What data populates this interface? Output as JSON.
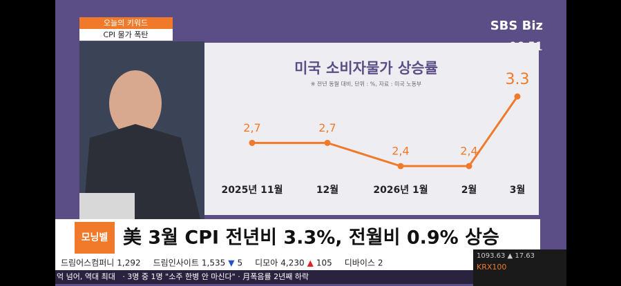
{
  "keyword": {
    "label": "오늘의 키워드",
    "topic": "CPI 물가 폭탄"
  },
  "logo": "SBS Biz",
  "clock": "06:51",
  "chart_data": {
    "type": "line",
    "title": "미국 소비자물가 상승률",
    "subtitle": "※ 전년 동월 대비, 단위 : %, 자료 : 미국 노동부",
    "categories": [
      "2025년 11월",
      "12월",
      "2026년 1월",
      "2월",
      "3월"
    ],
    "values": [
      2.7,
      2.7,
      2.4,
      2.4,
      3.3
    ],
    "value_labels": [
      "2,7",
      "2,7",
      "2,4",
      "2,4",
      "3.3"
    ],
    "color": "#f07a2a"
  },
  "headline": {
    "badge": "모닝벨",
    "text": "美 3월 CPI 전년비 3.3%, 전월비 0.9% 상승"
  },
  "ticker": [
    {
      "name": "드림어스컴퍼니",
      "price": "1,292"
    },
    {
      "name": "드림인사이트",
      "price": "1,535",
      "arrow": "▼",
      "change": "5"
    },
    {
      "name": "디모아",
      "price": "4,230",
      "arrow": "▲",
      "change": "105"
    },
    {
      "name": "디바이스",
      "price": "2"
    }
  ],
  "news_line": "억 넘어, 역대 최대   · 3명 중 1명 \"소주 한병 안 마신다\" · 月폭음률 2년째 하락",
  "index": {
    "name": "KRX100",
    "top": "1093.63 ▲ 17.63"
  }
}
